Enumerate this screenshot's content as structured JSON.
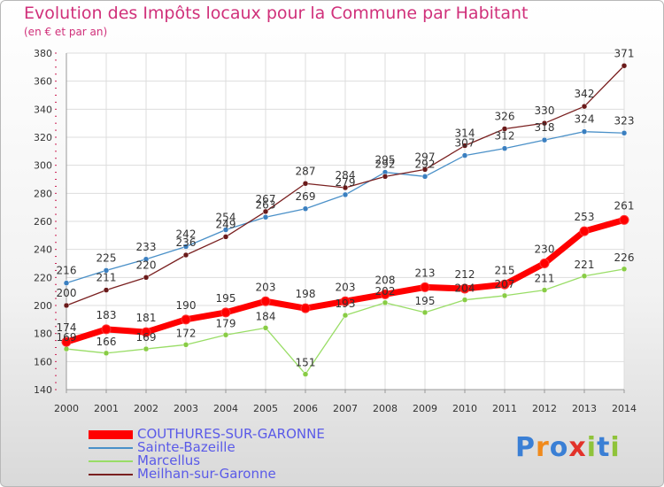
{
  "header": {
    "title": "Evolution des Impôts locaux pour la Commune par Habitant",
    "subtitle": "(en € et par an)"
  },
  "logo": {
    "text": "Proxiti",
    "letter_colors": [
      "#3a7fd5",
      "#f08a1c",
      "#3a7fd5",
      "#e2322a",
      "#8fc33a",
      "#3a7fd5",
      "#8fc33a"
    ]
  },
  "chart_data": {
    "type": "line",
    "x": [
      2000,
      2001,
      2002,
      2003,
      2004,
      2005,
      2006,
      2007,
      2008,
      2009,
      2010,
      2011,
      2012,
      2013,
      2014
    ],
    "ylim": [
      140,
      380
    ],
    "yticks": [
      140,
      160,
      180,
      200,
      220,
      240,
      260,
      280,
      300,
      320,
      340,
      360,
      380
    ],
    "grid": true,
    "legend_position": "bottom-left",
    "series": [
      {
        "name": "Sainte-Bazeille",
        "color": "#4a90c8",
        "marker": "#3a7fc0",
        "values": [
          216,
          225,
          233,
          242,
          254,
          263,
          269,
          279,
          295,
          292,
          307,
          312,
          318,
          324,
          323
        ]
      },
      {
        "name": "Meilhan-sur-Garonne",
        "color": "#7a2020",
        "marker": "#6a1a1a",
        "values": [
          200,
          211,
          220,
          236,
          249,
          267,
          287,
          284,
          292,
          297,
          314,
          326,
          330,
          342,
          371
        ]
      },
      {
        "name": "Marcellus",
        "color": "#99dd66",
        "marker": "#88cc44",
        "values": [
          169,
          166,
          169,
          172,
          179,
          184,
          151,
          193,
          202,
          195,
          204,
          207,
          211,
          221,
          226
        ]
      },
      {
        "name": "COUTHURES-SUR-GARONNE",
        "color": "#ff0000",
        "marker": "#ff0000",
        "values": [
          174,
          183,
          181,
          190,
          195,
          203,
          198,
          203,
          208,
          213,
          212,
          215,
          230,
          253,
          261
        ]
      }
    ],
    "point_labels": {
      "Sainte-Bazeille": [
        "216",
        "225",
        "233",
        "242",
        "254",
        "263",
        "269",
        "279",
        "295",
        "292",
        "307",
        "312",
        "318",
        "324",
        "323"
      ],
      "Meilhan-sur-Garonne": [
        "200",
        "211",
        "220",
        "236",
        "249",
        "267",
        "287",
        "284",
        "292",
        "297",
        "314",
        "326",
        "330",
        "342",
        "371"
      ],
      "Marcellus": [
        "169",
        "166",
        "169",
        "172",
        "179",
        "184",
        "151",
        "193",
        "202",
        "195",
        "204",
        "207",
        "211",
        "221",
        "226"
      ],
      "COUTHURES-SUR-GARONNE": [
        "174",
        "183",
        "181",
        "190",
        "195",
        "203",
        "198",
        "203",
        "208",
        "213",
        "212",
        "215",
        "230",
        "253",
        "261"
      ]
    },
    "legend_order": [
      "COUTHURES-SUR-GARONNE",
      "Sainte-Bazeille",
      "Marcellus",
      "Meilhan-sur-Garonne"
    ]
  }
}
